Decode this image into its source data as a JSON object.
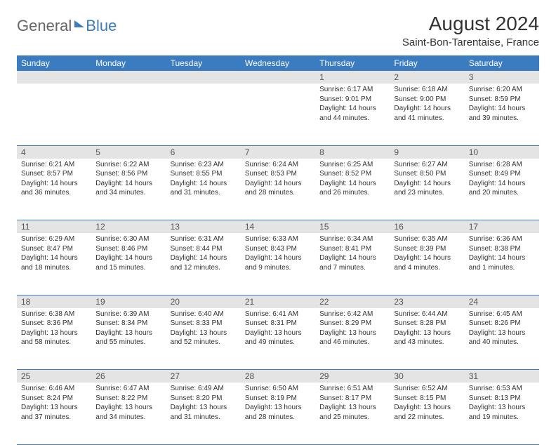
{
  "brand": {
    "part1": "General",
    "part2": "Blue"
  },
  "title": "August 2024",
  "location": "Saint-Bon-Tarentaise, France",
  "colors": {
    "header_bg": "#3b7bbf",
    "header_text": "#ffffff",
    "daynum_bg": "#e4e4e4",
    "row_border": "#3b7bbf",
    "text": "#333333",
    "logo_gray": "#666666",
    "logo_blue": "#3b7bbf"
  },
  "typography": {
    "title_fontsize": 28,
    "location_fontsize": 15,
    "header_fontsize": 12,
    "cell_fontsize": 10,
    "daynum_fontsize": 12
  },
  "weekdays": [
    "Sunday",
    "Monday",
    "Tuesday",
    "Wednesday",
    "Thursday",
    "Friday",
    "Saturday"
  ],
  "weeks": [
    [
      null,
      null,
      null,
      null,
      {
        "n": "1",
        "sr": "6:17 AM",
        "ss": "9:01 PM",
        "dh": "14",
        "dm": "44"
      },
      {
        "n": "2",
        "sr": "6:18 AM",
        "ss": "9:00 PM",
        "dh": "14",
        "dm": "41"
      },
      {
        "n": "3",
        "sr": "6:20 AM",
        "ss": "8:59 PM",
        "dh": "14",
        "dm": "39"
      }
    ],
    [
      {
        "n": "4",
        "sr": "6:21 AM",
        "ss": "8:57 PM",
        "dh": "14",
        "dm": "36"
      },
      {
        "n": "5",
        "sr": "6:22 AM",
        "ss": "8:56 PM",
        "dh": "14",
        "dm": "34"
      },
      {
        "n": "6",
        "sr": "6:23 AM",
        "ss": "8:55 PM",
        "dh": "14",
        "dm": "31"
      },
      {
        "n": "7",
        "sr": "6:24 AM",
        "ss": "8:53 PM",
        "dh": "14",
        "dm": "28"
      },
      {
        "n": "8",
        "sr": "6:25 AM",
        "ss": "8:52 PM",
        "dh": "14",
        "dm": "26"
      },
      {
        "n": "9",
        "sr": "6:27 AM",
        "ss": "8:50 PM",
        "dh": "14",
        "dm": "23"
      },
      {
        "n": "10",
        "sr": "6:28 AM",
        "ss": "8:49 PM",
        "dh": "14",
        "dm": "20"
      }
    ],
    [
      {
        "n": "11",
        "sr": "6:29 AM",
        "ss": "8:47 PM",
        "dh": "14",
        "dm": "18"
      },
      {
        "n": "12",
        "sr": "6:30 AM",
        "ss": "8:46 PM",
        "dh": "14",
        "dm": "15"
      },
      {
        "n": "13",
        "sr": "6:31 AM",
        "ss": "8:44 PM",
        "dh": "14",
        "dm": "12"
      },
      {
        "n": "14",
        "sr": "6:33 AM",
        "ss": "8:43 PM",
        "dh": "14",
        "dm": "9"
      },
      {
        "n": "15",
        "sr": "6:34 AM",
        "ss": "8:41 PM",
        "dh": "14",
        "dm": "7"
      },
      {
        "n": "16",
        "sr": "6:35 AM",
        "ss": "8:39 PM",
        "dh": "14",
        "dm": "4"
      },
      {
        "n": "17",
        "sr": "6:36 AM",
        "ss": "8:38 PM",
        "dh": "14",
        "dm": "1"
      }
    ],
    [
      {
        "n": "18",
        "sr": "6:38 AM",
        "ss": "8:36 PM",
        "dh": "13",
        "dm": "58"
      },
      {
        "n": "19",
        "sr": "6:39 AM",
        "ss": "8:34 PM",
        "dh": "13",
        "dm": "55"
      },
      {
        "n": "20",
        "sr": "6:40 AM",
        "ss": "8:33 PM",
        "dh": "13",
        "dm": "52"
      },
      {
        "n": "21",
        "sr": "6:41 AM",
        "ss": "8:31 PM",
        "dh": "13",
        "dm": "49"
      },
      {
        "n": "22",
        "sr": "6:42 AM",
        "ss": "8:29 PM",
        "dh": "13",
        "dm": "46"
      },
      {
        "n": "23",
        "sr": "6:44 AM",
        "ss": "8:28 PM",
        "dh": "13",
        "dm": "43"
      },
      {
        "n": "24",
        "sr": "6:45 AM",
        "ss": "8:26 PM",
        "dh": "13",
        "dm": "40"
      }
    ],
    [
      {
        "n": "25",
        "sr": "6:46 AM",
        "ss": "8:24 PM",
        "dh": "13",
        "dm": "37"
      },
      {
        "n": "26",
        "sr": "6:47 AM",
        "ss": "8:22 PM",
        "dh": "13",
        "dm": "34"
      },
      {
        "n": "27",
        "sr": "6:49 AM",
        "ss": "8:20 PM",
        "dh": "13",
        "dm": "31"
      },
      {
        "n": "28",
        "sr": "6:50 AM",
        "ss": "8:19 PM",
        "dh": "13",
        "dm": "28"
      },
      {
        "n": "29",
        "sr": "6:51 AM",
        "ss": "8:17 PM",
        "dh": "13",
        "dm": "25"
      },
      {
        "n": "30",
        "sr": "6:52 AM",
        "ss": "8:15 PM",
        "dh": "13",
        "dm": "22"
      },
      {
        "n": "31",
        "sr": "6:53 AM",
        "ss": "8:13 PM",
        "dh": "13",
        "dm": "19"
      }
    ]
  ]
}
